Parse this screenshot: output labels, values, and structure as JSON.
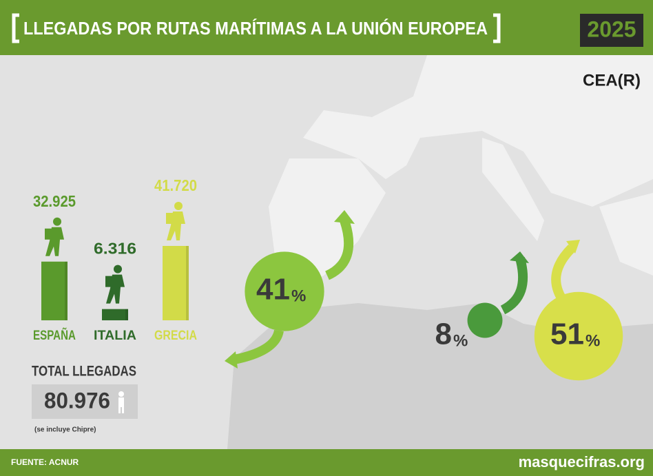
{
  "header": {
    "title": "LLEGADAS POR RUTAS MARÍTIMAS A LA UNIÓN EUROPEA",
    "year": "2025",
    "brand": "CEA(R)"
  },
  "chart_data": {
    "type": "bar",
    "categories": [
      "ESPAÑA",
      "ITALIA",
      "GRECIA"
    ],
    "values": [
      32925,
      6316,
      41720
    ],
    "value_labels": [
      "32.925",
      "6.316",
      "41.720"
    ],
    "colors": [
      "#5a9a2c",
      "#2f6b2a",
      "#d2db48"
    ]
  },
  "routes": {
    "values": [
      41,
      8,
      51
    ],
    "unit": "%",
    "colors": [
      "#8cc63f",
      "#4a9a3c",
      "#d8df4a"
    ]
  },
  "total": {
    "label": "TOTAL LLEGADAS",
    "value": "80.976",
    "note": "(se incluye Chipre)"
  },
  "footer": {
    "source": "FUENTE: ACNUR",
    "site": "masquecifras.org"
  }
}
